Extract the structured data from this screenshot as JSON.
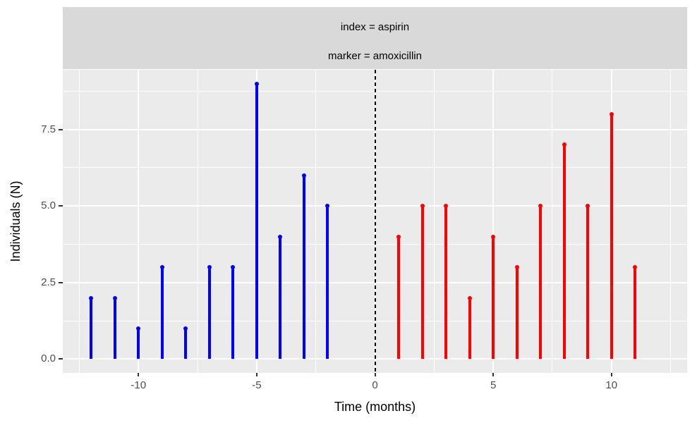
{
  "chart_data": {
    "type": "bar",
    "variant": "lollipop-stem",
    "strip": {
      "line1": "index = aspirin",
      "line2": "marker = amoxicillin"
    },
    "xlabel": "Time (months)",
    "ylabel": "Individuals (N)",
    "xlim": [
      -13.2,
      13.2
    ],
    "ylim": [
      -0.45,
      9.45
    ],
    "x_ticks": [
      {
        "v": -10,
        "label": "-10"
      },
      {
        "v": -5,
        "label": "-5"
      },
      {
        "v": 0,
        "label": "0"
      },
      {
        "v": 5,
        "label": "5"
      },
      {
        "v": 10,
        "label": "10"
      }
    ],
    "x_minor": [
      -12.5,
      -7.5,
      -2.5,
      2.5,
      7.5,
      12.5
    ],
    "y_ticks": [
      {
        "v": 0,
        "label": "0.0"
      },
      {
        "v": 2.5,
        "label": "2.5"
      },
      {
        "v": 5,
        "label": "5.0"
      },
      {
        "v": 7.5,
        "label": "7.5"
      }
    ],
    "y_minor": [
      1.25,
      3.75,
      6.25,
      8.75
    ],
    "grid": "on",
    "legend": "none",
    "reference_line": {
      "x": 0,
      "style": "dashed",
      "color": "#000000"
    },
    "series": [
      {
        "name": "blue-stems-pre-index",
        "color": "#0000FF",
        "x": [
          -12,
          -11,
          -10,
          -9,
          -8,
          -7,
          -6,
          -5,
          -4,
          -3,
          -2
        ],
        "y": [
          2,
          2,
          1,
          3,
          1,
          3,
          3,
          9,
          4,
          6,
          5
        ]
      },
      {
        "name": "red-stems-post-index",
        "color": "#FF0000",
        "x": [
          1,
          2,
          3,
          4,
          5,
          6,
          7,
          8,
          9,
          10,
          11
        ],
        "y": [
          4,
          5,
          5,
          2,
          4,
          3,
          5,
          7,
          5,
          8,
          3
        ]
      }
    ],
    "colors": {
      "panel_bg": "#EBEBEB",
      "strip_bg": "#D9D9D9",
      "gridline": "#FFFFFF",
      "tick_label": "#4D4D4D",
      "axis_title": "#000000",
      "tick_mark": "#333333"
    }
  }
}
